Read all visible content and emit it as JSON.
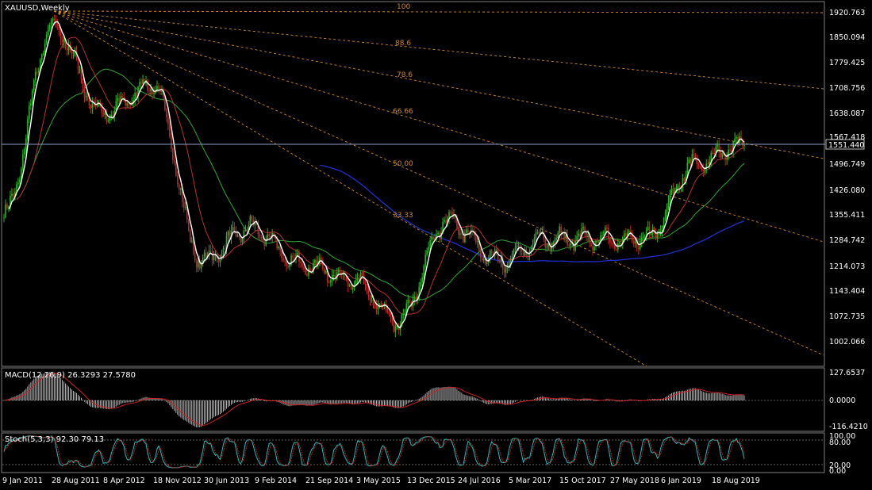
{
  "window": {
    "title": "XAUUSD,Weekly"
  },
  "price_panel": {
    "current_price": "1551.440",
    "axis_labels": [
      "1920.763",
      "1850.094",
      "1779.425",
      "1708.756",
      "1638.087",
      "1567.418",
      "1496.749",
      "1426.080",
      "1355.411",
      "1284.742",
      "1214.073",
      "1143.404",
      "1072.735",
      "1002.066"
    ]
  },
  "fib_fan": {
    "levels": [
      "100",
      "88.6",
      "78.6",
      "66.66",
      "50.00",
      "33.33"
    ]
  },
  "macd_panel": {
    "label": "MACD(12,26,9) 26.3293 27.5780",
    "axis_labels": [
      "127.6537",
      "0.0000",
      "-116.4210"
    ]
  },
  "stoch_panel": {
    "label": "Stoch(5,3,3) 92.30 79.13",
    "axis_labels": [
      "100.00",
      "80.00",
      "20.00",
      "0.00"
    ]
  },
  "time_axis": {
    "labels": [
      "9 Jan 2011",
      "28 Aug 2011",
      "8 Apr 2012",
      "18 Nov 2012",
      "30 Jun 2013",
      "9 Feb 2014",
      "21 Sep 2014",
      "3 May 2015",
      "13 Dec 2015",
      "24 Jul 2016",
      "5 Mar 2017",
      "15 Oct 2017",
      "27 May 2018",
      "6 Jan 2019",
      "18 Aug 2019"
    ]
  },
  "colors": {
    "bull": "#22b822",
    "bear": "#c02828",
    "fast_ma": "#ffffff",
    "mid_ma": "#b83030",
    "slow_ma": "#2eaa2e",
    "long_ma": "#2233dd",
    "fib": "#d08a2c",
    "macd_signal": "#d02020",
    "stoch_main": "#20c0c0",
    "stoch_signal": "#d02020"
  },
  "chart_data": {
    "type": "candlestick",
    "symbol": "XAUUSD",
    "timeframe": "Weekly",
    "ylim": [
      1002.066,
      1920.763
    ],
    "price_path": [
      [
        "9 Jan 2011",
        1360
      ],
      [
        "28 Aug 2011",
        1880
      ],
      [
        "8 Apr 2012",
        1640
      ],
      [
        "18 Nov 2012",
        1720
      ],
      [
        "30 Jun 2013",
        1230
      ],
      [
        "9 Feb 2014",
        1320
      ],
      [
        "21 Sep 2014",
        1220
      ],
      [
        "3 May 2015",
        1180
      ],
      [
        "13 Dec 2015",
        1065
      ],
      [
        "24 Jul 2016",
        1340
      ],
      [
        "5 Mar 2017",
        1230
      ],
      [
        "15 Oct 2017",
        1290
      ],
      [
        "27 May 2018",
        1290
      ],
      [
        "6 Jan 2019",
        1290
      ],
      [
        "18 Aug 2019",
        1500
      ],
      [
        "end",
        1551.44
      ]
    ]
  }
}
